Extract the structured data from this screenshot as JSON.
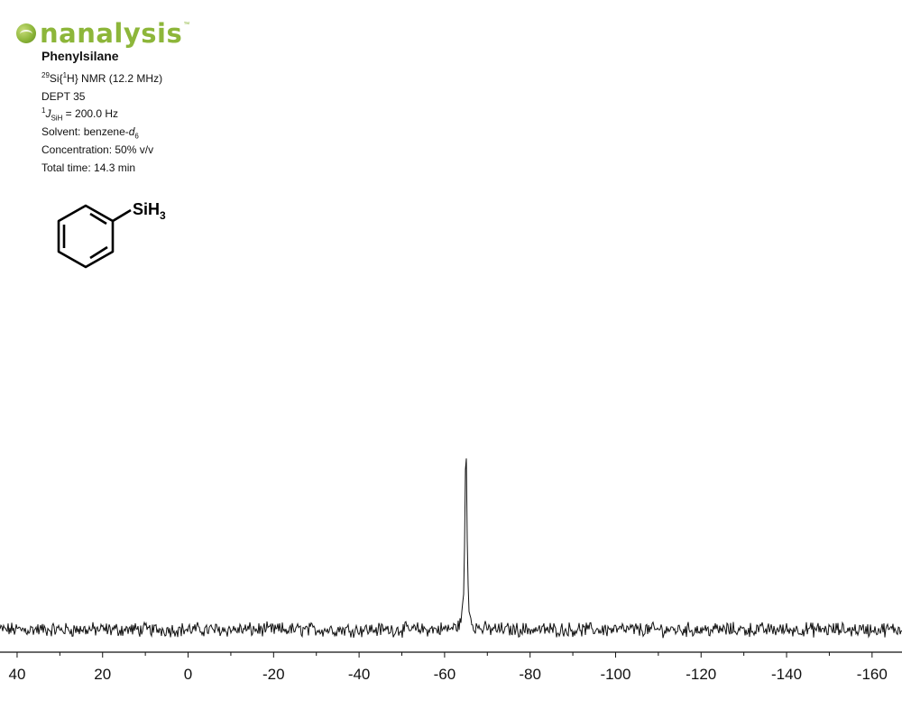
{
  "brand": {
    "name": "nanalysis",
    "trademark": "™",
    "color": "#8db63a"
  },
  "compound": {
    "name": "Phenylsilane",
    "substituent_label": "SiH",
    "substituent_subscript": "3"
  },
  "experiment": {
    "nucleus_sup": "29",
    "nucleus_rest": "Si{",
    "decouple_sup": "1",
    "decouple_rest": "H} NMR (12.2 MHz)",
    "pulse": "DEPT 35",
    "j_sup": "1",
    "j_letter": "J",
    "j_sub": "SiH",
    "j_value": " = 200.0 Hz",
    "solvent_prefix": "Solvent: benzene-",
    "solvent_d": "d",
    "solvent_sub": "6",
    "concentration": "Concentration: 50% v/v",
    "total_time": "Total time: 14.3 min"
  },
  "chart_data": {
    "type": "line",
    "xlabel": "",
    "ylabel": "",
    "x_reversed": true,
    "xlim": [
      44,
      -167
    ],
    "x_ticks_major": [
      40,
      20,
      0,
      -20,
      -40,
      -60,
      -80,
      -100,
      -120,
      -140,
      -160
    ],
    "x_tick_labels": [
      "40",
      "20",
      "0",
      "-20",
      "-40",
      "-60",
      "-80",
      "-100",
      "-120",
      "-140",
      "-160"
    ],
    "x_ticks_minor_step": 10,
    "grid": false,
    "series": [
      {
        "peaks": [
          {
            "shift_ppm": -65.0,
            "relative_intensity": 1.0
          }
        ],
        "baseline_noise_fraction": 0.03,
        "color": "#111111"
      }
    ]
  }
}
